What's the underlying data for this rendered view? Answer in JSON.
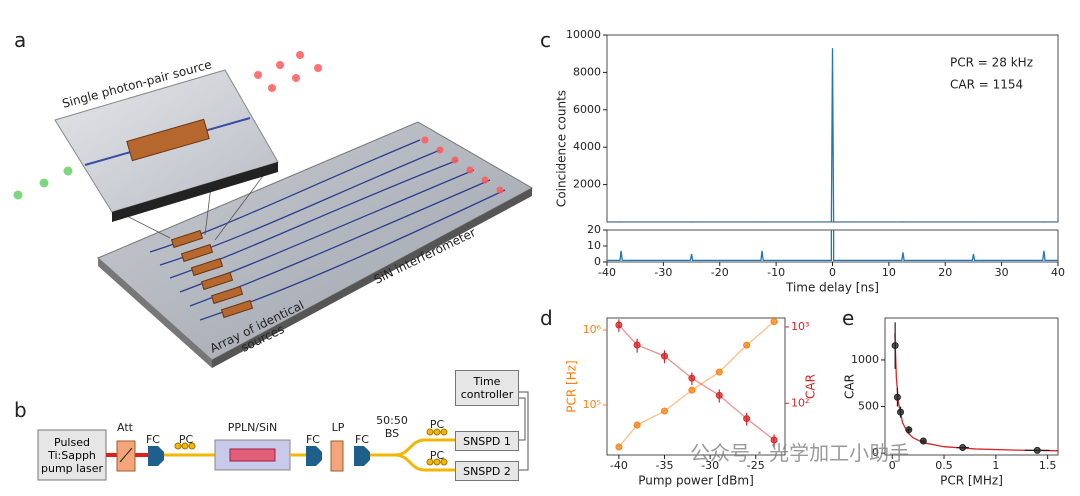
{
  "panels": [
    "a",
    "b",
    "c",
    "d",
    "e"
  ],
  "diagram_a": {
    "source": "Single photon-pair source",
    "interferometer": "SiN interferometer",
    "array": "Array of identical sources"
  },
  "diagram_b": {
    "laser": "Pulsed Ti:Sapph pump laser",
    "att": "Att",
    "fc": [
      "FC",
      "FC",
      "FC"
    ],
    "pc": [
      "PC",
      "PC",
      "PC"
    ],
    "chip": "PPLN/SiN",
    "lp": "LP",
    "bs": "50:50 BS",
    "time_controller": "Time controller",
    "detectors": [
      "SNSPD 1",
      "SNSPD 2"
    ]
  },
  "watermark": "公众号 · 光学加工小助手",
  "chart_data": [
    {
      "type": "line",
      "xlabel": "Time delay [ns]",
      "ylabel": "Coincidence counts",
      "xlim": [
        -40,
        40
      ],
      "xticks": [
        -40,
        -30,
        -20,
        -10,
        0,
        10,
        20,
        30,
        40
      ],
      "ylim": [
        0,
        10000
      ],
      "yticks": [
        2000,
        4000,
        6000,
        8000,
        10000
      ],
      "broken_ylim": [
        0,
        20
      ],
      "broken_yticks": [
        0,
        10,
        20
      ],
      "annotations": [
        "PCR = 28 kHz",
        "CAR = 1154"
      ],
      "series": [
        {
          "color": "#1f77b4",
          "x": [
            -40,
            -37.7,
            -37.5,
            -37.3,
            -25.2,
            -25,
            -24.8,
            -12.7,
            -12.5,
            -12.3,
            -0.2,
            0,
            0.2,
            12.3,
            12.5,
            12.7,
            24.8,
            25,
            25.2,
            37.3,
            37.5,
            37.7,
            40
          ],
          "values": [
            1,
            1,
            7,
            1,
            1,
            5,
            1,
            1,
            7,
            1,
            1,
            9300,
            1,
            1,
            6,
            1,
            1,
            5,
            1,
            1,
            7,
            1,
            1
          ]
        }
      ]
    },
    {
      "type": "scatter",
      "xlabel": "Pump power [dBm]",
      "ylabel": "PCR [Hz]",
      "y2label": "CAR",
      "xlim": [
        -41.3,
        -21.8
      ],
      "xticks": [
        -40,
        -35,
        -30,
        -25
      ],
      "ylog": true,
      "ylim": [
        21500,
        1450000
      ],
      "yticks": [
        {
          "value": 100000,
          "label": "10⁵"
        },
        {
          "value": 1000000,
          "label": "10⁶"
        }
      ],
      "y2log": true,
      "y2lim": [
        21,
        1310
      ],
      "y2ticks": [
        {
          "value": 100,
          "label": "10²"
        },
        {
          "value": 1000,
          "label": "10³"
        }
      ],
      "series": [
        {
          "color": "#ff7f0e",
          "connect": true,
          "x": [
            -40,
            -38,
            -35,
            -32,
            -29,
            -26,
            -23
          ],
          "values": [
            27500,
            54000,
            83000,
            158000,
            275000,
            630000,
            1300000
          ]
        },
        {
          "color": "#d62728",
          "connect": true,
          "axis": "y2",
          "x": [
            -40,
            -38,
            -35,
            -32,
            -29,
            -26,
            -23
          ],
          "values": [
            1060,
            580,
            415,
            213,
            127,
            63,
            33
          ],
          "errors": [
            200,
            120,
            80,
            40,
            25,
            12,
            6
          ]
        }
      ]
    },
    {
      "type": "scatter",
      "xlabel": "PCR [MHz]",
      "ylabel": "CAR",
      "xlim": [
        -0.07,
        1.6
      ],
      "xticks": [
        0,
        0.5,
        1,
        1.5
      ],
      "ylim": [
        -20,
        1450
      ],
      "yticks": [
        0,
        500,
        1000
      ],
      "series": [
        {
          "color": "#d62728",
          "mode": "lines",
          "x": [
            0.025,
            0.04,
            0.06,
            0.1,
            0.15,
            0.2,
            0.3,
            0.5,
            0.8,
            1.2,
            1.6
          ],
          "values": [
            1285,
            805,
            538,
            325,
            218,
            165,
            112,
            69,
            45,
            32,
            25
          ]
        },
        {
          "color": "#222222",
          "x": [
            0.028,
            0.05,
            0.08,
            0.16,
            0.3,
            0.68,
            1.4
          ],
          "values": [
            1154,
            600,
            440,
            250,
            130,
            60,
            30
          ],
          "errors": [
            250,
            100,
            60,
            40,
            20,
            10,
            5
          ],
          "xerrors": [
            0.005,
            0.008,
            0.01,
            0.02,
            0.03,
            0.06,
            0.12
          ]
        }
      ]
    }
  ]
}
